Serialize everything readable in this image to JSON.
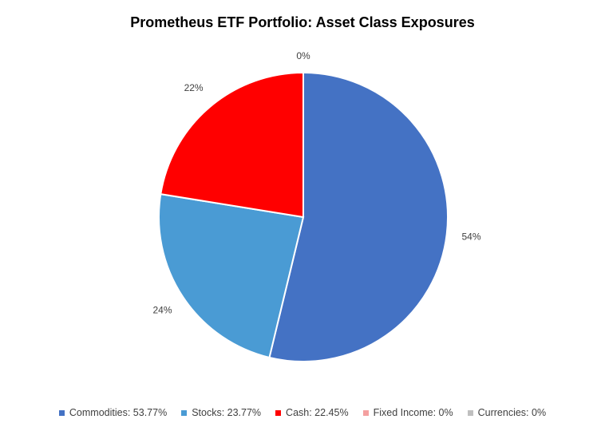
{
  "chart_data": {
    "type": "pie",
    "title": "Prometheus ETF Portfolio: Asset Class Exposures",
    "legend_position": "bottom",
    "slices": [
      {
        "name": "Commodities",
        "value": 53.77,
        "data_label": "54%",
        "legend_label": "Commodities: 53.77%",
        "color": "#4472C4"
      },
      {
        "name": "Stocks",
        "value": 23.77,
        "data_label": "24%",
        "legend_label": "Stocks: 23.77%",
        "color": "#4A9BD4"
      },
      {
        "name": "Cash",
        "value": 22.45,
        "data_label": "22%",
        "legend_label": "Cash: 22.45%",
        "color": "#FF0000"
      },
      {
        "name": "Fixed Income",
        "value": 0,
        "data_label": "",
        "legend_label": "Fixed Income: 0%",
        "color": "#F4A0A0"
      },
      {
        "name": "Currencies",
        "value": 0,
        "data_label": "0%",
        "legend_label": "Currencies: 0%",
        "color": "#BFBFBF"
      }
    ]
  }
}
